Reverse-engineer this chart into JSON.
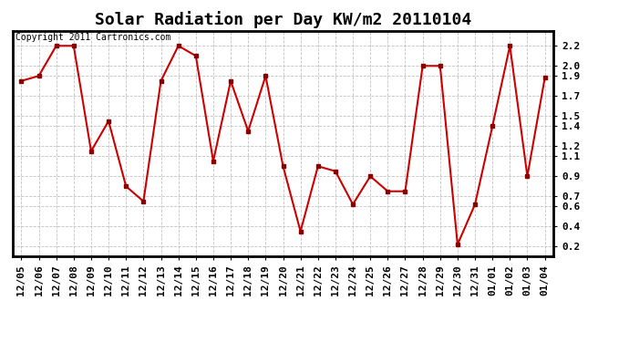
{
  "title": "Solar Radiation per Day KW/m2 20110104",
  "copyright_text": "Copyright 2011 Cartronics.com",
  "labels": [
    "12/05",
    "12/06",
    "12/07",
    "12/08",
    "12/09",
    "12/10",
    "12/11",
    "12/12",
    "12/13",
    "12/14",
    "12/15",
    "12/16",
    "12/17",
    "12/18",
    "12/19",
    "12/20",
    "12/21",
    "12/22",
    "12/23",
    "12/24",
    "12/25",
    "12/26",
    "12/27",
    "12/28",
    "12/29",
    "12/30",
    "12/31",
    "01/01",
    "01/02",
    "01/03",
    "01/04"
  ],
  "values": [
    1.85,
    1.9,
    2.2,
    2.2,
    1.15,
    1.45,
    0.8,
    0.65,
    1.85,
    2.2,
    2.1,
    1.05,
    1.85,
    1.35,
    1.9,
    1.0,
    0.35,
    1.0,
    0.95,
    0.62,
    0.9,
    0.75,
    0.75,
    2.0,
    2.0,
    0.22,
    0.62,
    1.4,
    2.2,
    0.9,
    1.88
  ],
  "line_color": "#cc0000",
  "marker_color": "#880000",
  "bg_color": "#ffffff",
  "grid_color": "#bbbbbb",
  "ylim_min": 0.1,
  "ylim_max": 2.35,
  "yticks": [
    0.2,
    0.4,
    0.6,
    0.7,
    0.9,
    1.1,
    1.2,
    1.4,
    1.5,
    1.7,
    1.9,
    2.0,
    2.2
  ],
  "title_fontsize": 13,
  "tick_fontsize": 8,
  "copyright_fontsize": 7
}
